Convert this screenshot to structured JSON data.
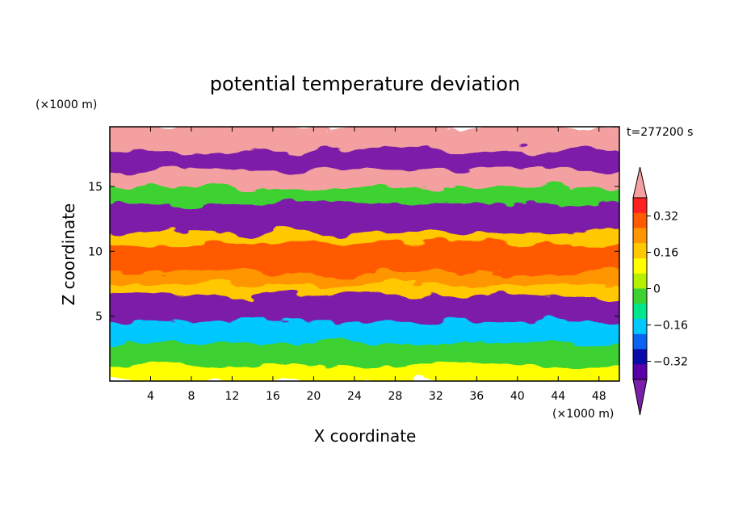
{
  "chart_data": {
    "type": "heatmap",
    "title": "potential temperature deviation",
    "xlabel": "X coordinate",
    "ylabel": "Z coordinate",
    "x_unit": "(×1000 m)",
    "y_unit": "(×1000 m)",
    "time_label": "t=277200 s",
    "xlim": [
      0,
      50
    ],
    "ylim": [
      0,
      19.6
    ],
    "x_ticks": [
      "4",
      "8",
      "12",
      "16",
      "20",
      "24",
      "28",
      "32",
      "36",
      "40",
      "44",
      "48"
    ],
    "y_ticks": [
      "5",
      "10",
      "15"
    ],
    "colorbar": {
      "colors": [
        "#7b1ea8",
        "#5a00a8",
        "#0a0aa8",
        "#0a64f0",
        "#00c8ff",
        "#00e68c",
        "#3cd232",
        "#b4f000",
        "#ffff00",
        "#ffc800",
        "#ff9600",
        "#ff5a00",
        "#ff2020",
        "#f4a0a0"
      ],
      "labels": [
        "0.32",
        "0.16",
        "0",
        "−0.16",
        "−0.32"
      ],
      "label_values": [
        0.32,
        0.16,
        0,
        -0.16,
        -0.32
      ]
    },
    "vertical_profile": [
      {
        "z": 0.5,
        "value": 0.05
      },
      {
        "z": 2.0,
        "value": -0.1
      },
      {
        "z": 4.0,
        "value": -0.2
      },
      {
        "z": 5.3,
        "value": -0.44
      },
      {
        "z": 6.3,
        "value": -0.44
      },
      {
        "z": 7.0,
        "value": 0.14
      },
      {
        "z": 8.0,
        "value": 0.2
      },
      {
        "z": 9.0,
        "value": 0.25
      },
      {
        "z": 10.2,
        "value": 0.3
      },
      {
        "z": 11.0,
        "value": 0.1
      },
      {
        "z": 12.0,
        "value": -0.44
      },
      {
        "z": 13.2,
        "value": -0.44
      },
      {
        "z": 14.5,
        "value": -0.05
      },
      {
        "z": 15.5,
        "value": 0.44
      },
      {
        "z": 17.0,
        "value": -0.44
      },
      {
        "z": 18.8,
        "value": 0.44
      }
    ]
  }
}
